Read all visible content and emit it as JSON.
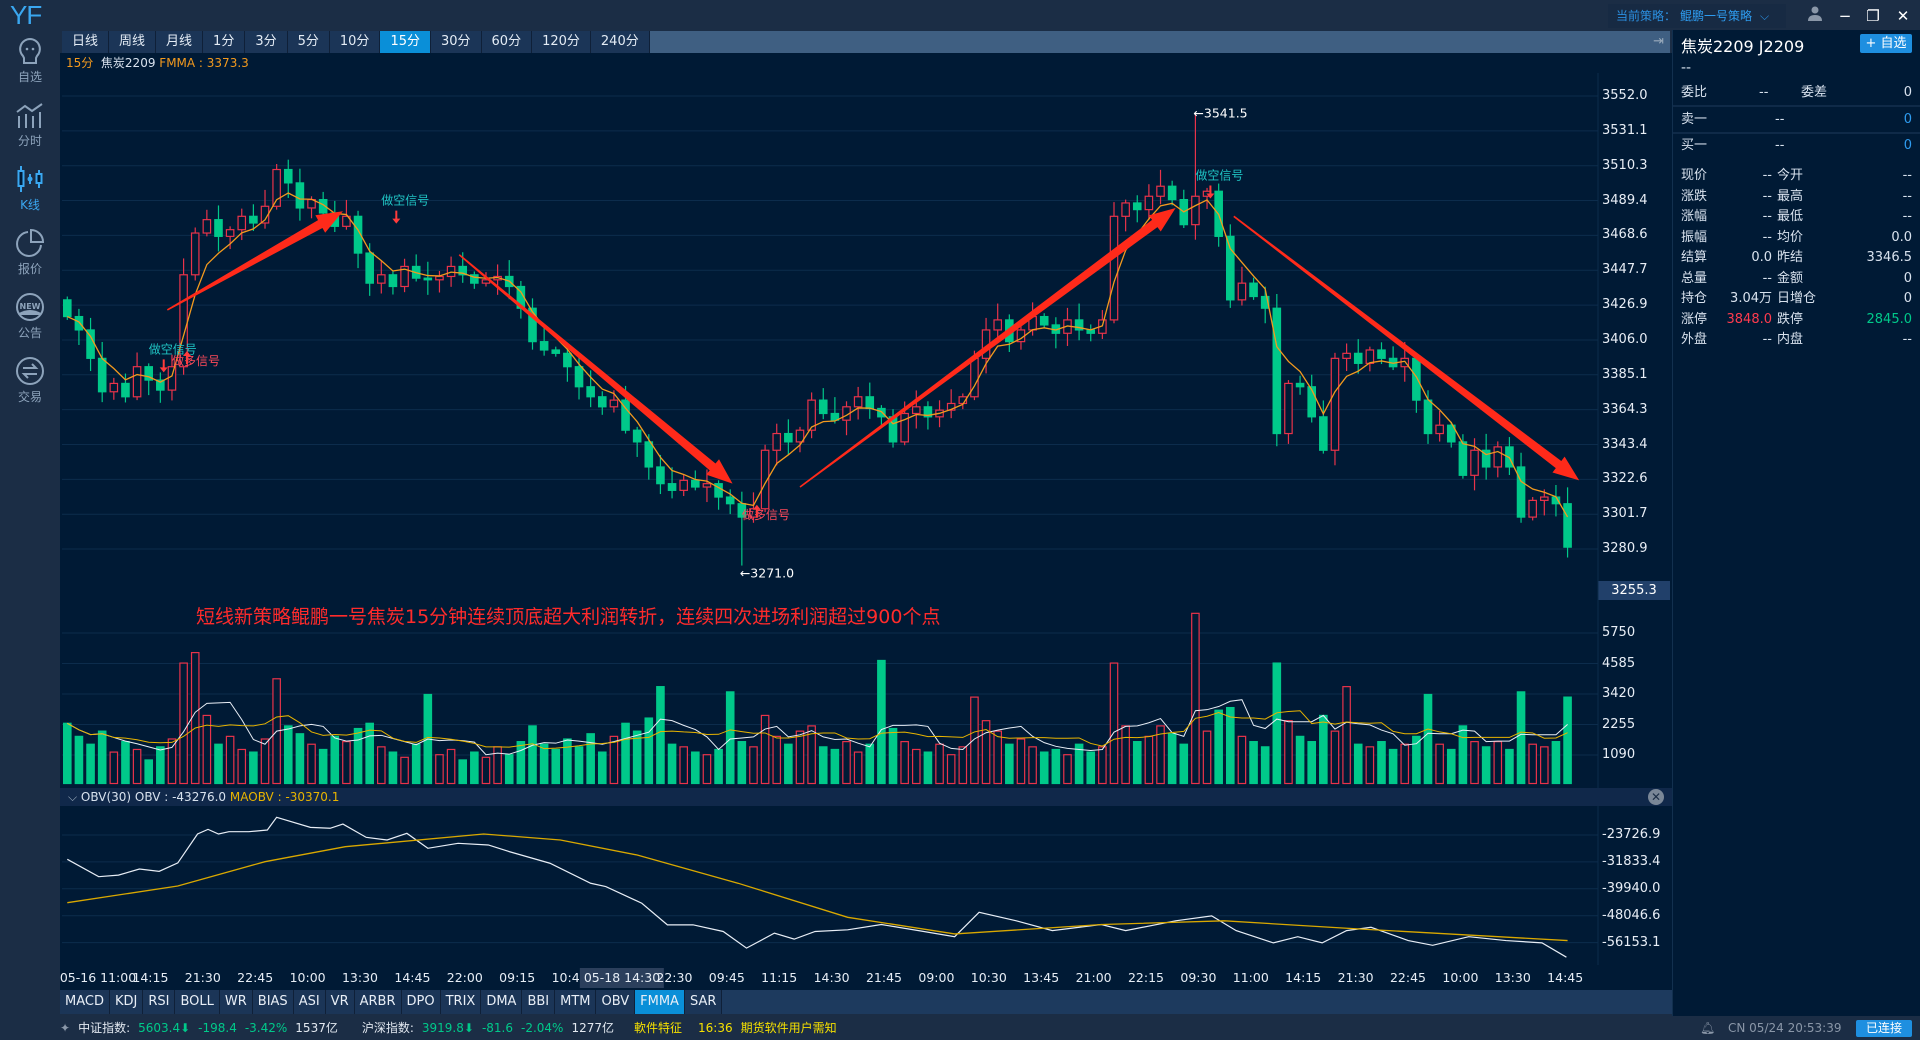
{
  "app": {
    "logo": "YF"
  },
  "sidebar": {
    "items": [
      {
        "label": "自选",
        "icon": "watchlist-icon"
      },
      {
        "label": "分时",
        "icon": "timeshare-icon"
      },
      {
        "label": "K线",
        "icon": "kline-icon",
        "active": true
      },
      {
        "label": "报价",
        "icon": "quote-pie-icon"
      },
      {
        "label": "公告",
        "icon": "new-badge-icon"
      },
      {
        "label": "交易",
        "icon": "trade-exchange-icon"
      }
    ]
  },
  "topbar": {
    "strategy_label": "当前策略：",
    "strategy_value": "鲲鹏一号策略",
    "minimize": "−",
    "restore": "❐",
    "close": "✕"
  },
  "period_tabs": [
    "日线",
    "周线",
    "月线",
    "1分",
    "3分",
    "5分",
    "10分",
    "15分",
    "30分",
    "60分",
    "120分",
    "240分"
  ],
  "active_period": "15分",
  "info": {
    "period": "15分",
    "symbol": "焦炭2209",
    "indicator": "FMMA : 3373.3"
  },
  "overlay_text": "短线新策略鲲鹏一号焦炭15分钟连续顶底超大利润转折，连续四次进场利润超过900个点",
  "colors": {
    "up": "#e8334a",
    "down": "#00c98a",
    "ma": "#f39a1e",
    "arrow": "#ff2a1a",
    "bg": "#001a35",
    "accent": "#0a8fd8"
  },
  "chart_data": {
    "type": "candlestick",
    "price_axis": [
      "3552.0",
      "3531.1",
      "3510.3",
      "3489.4",
      "3468.6",
      "3447.7",
      "3426.9",
      "3406.0",
      "3385.1",
      "3364.3",
      "3343.4",
      "3322.6",
      "3301.7",
      "3280.9"
    ],
    "crosshair_price": "3255.3",
    "closes": [
      3420,
      3412,
      3395,
      3375,
      3380,
      3372,
      3390,
      3382,
      3376,
      3390,
      3445,
      3470,
      3478,
      3468,
      3472,
      3480,
      3476,
      3486,
      3508,
      3500,
      3485,
      3490,
      3482,
      3474,
      3480,
      3458,
      3440,
      3445,
      3438,
      3450,
      3443,
      3442,
      3444,
      3450,
      3445,
      3440,
      3442,
      3444,
      3438,
      3425,
      3405,
      3400,
      3398,
      3390,
      3378,
      3372,
      3366,
      3370,
      3352,
      3345,
      3330,
      3320,
      3316,
      3322,
      3318,
      3320,
      3312,
      3308,
      3300,
      3305,
      3340,
      3350,
      3345,
      3352,
      3370,
      3362,
      3358,
      3366,
      3372,
      3365,
      3360,
      3345,
      3362,
      3366,
      3360,
      3364,
      3368,
      3372,
      3395,
      3412,
      3418,
      3405,
      3412,
      3420,
      3415,
      3410,
      3418,
      3412,
      3410,
      3418,
      3480,
      3488,
      3484,
      3492,
      3498,
      3490,
      3475,
      3492,
      3495,
      3468,
      3430,
      3440,
      3432,
      3425,
      3350,
      3380,
      3378,
      3360,
      3340,
      3395,
      3398,
      3392,
      3400,
      3395,
      3390,
      3395,
      3370,
      3350,
      3355,
      3345,
      3325,
      3340,
      3330,
      3342,
      3330,
      3300,
      3310,
      3312,
      3308,
      3282
    ],
    "first_open": 3430,
    "high_marker": {
      "label": "←3541.5",
      "value": 3541.5,
      "index": 97
    },
    "low_marker": {
      "label": "←3271.0",
      "value": 3271.0,
      "index": 58
    },
    "signals": [
      {
        "text": "做空信号",
        "type": "short",
        "index": 7,
        "price": 3398
      },
      {
        "text": "做多信号",
        "type": "long",
        "index": 9,
        "price": 3391
      },
      {
        "text": "做空信号",
        "type": "short",
        "index": 27,
        "price": 3487
      },
      {
        "text": "做多信号",
        "type": "long",
        "index": 58,
        "price": 3299
      },
      {
        "text": "做空信号",
        "type": "short",
        "index": 97,
        "price": 3502
      }
    ],
    "trend_arrows": [
      {
        "from": [
          8.6,
          3424
        ],
        "to": [
          23.7,
          3483
        ],
        "thick": true
      },
      {
        "from": [
          33.7,
          3457
        ],
        "to": [
          57.2,
          3320
        ],
        "thick": true
      },
      {
        "from": [
          63,
          3318
        ],
        "to": [
          95.3,
          3485
        ],
        "thick": true
      },
      {
        "from": [
          100.3,
          3480
        ],
        "to": [
          130,
          3322
        ],
        "thick": true
      }
    ],
    "volume_axis": [
      "5750",
      "4585",
      "3420",
      "2255",
      "1090"
    ],
    "volumes": [
      2300,
      1800,
      1500,
      2000,
      1200,
      1600,
      1300,
      900,
      1400,
      1700,
      4600,
      5000,
      2600,
      1500,
      1800,
      1300,
      1200,
      1700,
      4000,
      2200,
      1900,
      1500,
      1300,
      1800,
      1600,
      2100,
      2300,
      1400,
      1200,
      1000,
      1500,
      3400,
      1100,
      1300,
      900,
      1200,
      1000,
      1400,
      1100,
      1600,
      2200,
      1500,
      1300,
      1700,
      1400,
      1900,
      1200,
      1800,
      2300,
      2000,
      2500,
      3700,
      1500,
      1400,
      1200,
      1100,
      1300,
      3500,
      1600,
      1400,
      2600,
      1800,
      1500,
      2000,
      2200,
      1400,
      1300,
      1600,
      1200,
      1500,
      4700,
      2100,
      1600,
      1300,
      1200,
      1500,
      1100,
      1400,
      3300,
      2400,
      2000,
      1500,
      1700,
      1400,
      1200,
      1300,
      1100,
      1500,
      1200,
      1400,
      4600,
      2200,
      1600,
      1800,
      2200,
      1900,
      1500,
      6500,
      2000,
      2800,
      2900,
      1800,
      1600,
      1400,
      4600,
      2400,
      1800,
      1600,
      2600,
      2000,
      3700,
      1500,
      1400,
      1600,
      1300,
      1500,
      1800,
      3400,
      1500,
      1300,
      2200,
      1600,
      1400,
      1600,
      1300,
      3500,
      1500,
      1400,
      1600,
      3300
    ],
    "obv_header": {
      "name": "OBV(30)",
      "obv": "OBV : -43276.0",
      "maobv": "MAOBV : -30370.1"
    },
    "obv_axis": [
      "-23726.9",
      "-31833.4",
      "-39940.0",
      "-48046.6",
      "-56153.1"
    ],
    "obv": [
      [
        0,
        -31040
      ],
      [
        2.7,
        -36270
      ],
      [
        4.4,
        -35800
      ],
      [
        6.2,
        -33970
      ],
      [
        7.9,
        -34670
      ],
      [
        9.5,
        -32130
      ],
      [
        11.2,
        -23430
      ],
      [
        12.1,
        -22030
      ],
      [
        13,
        -23430
      ],
      [
        13.9,
        -22730
      ],
      [
        15.6,
        -22730
      ],
      [
        17.2,
        -22230
      ],
      [
        18,
        -18400
      ],
      [
        20.9,
        -21430
      ],
      [
        22.6,
        -21700
      ],
      [
        23.7,
        -20430
      ],
      [
        25.7,
        -24430
      ],
      [
        27.5,
        -25230
      ],
      [
        29.2,
        -23230
      ],
      [
        31,
        -27730
      ],
      [
        33.6,
        -26230
      ],
      [
        36.2,
        -26730
      ],
      [
        38,
        -28730
      ],
      [
        41.5,
        -32230
      ],
      [
        45,
        -38250
      ],
      [
        46.3,
        -39250
      ],
      [
        49.4,
        -44270
      ],
      [
        51.6,
        -50770
      ],
      [
        53.8,
        -50770
      ],
      [
        56.4,
        -52770
      ],
      [
        58.4,
        -57770
      ],
      [
        60.8,
        -53270
      ],
      [
        62.5,
        -55070
      ],
      [
        64.3,
        -52770
      ],
      [
        67.1,
        -52270
      ],
      [
        70,
        -50670
      ],
      [
        73.2,
        -52510
      ],
      [
        76.3,
        -54340
      ],
      [
        78.4,
        -46990
      ],
      [
        81.6,
        -49560
      ],
      [
        84.7,
        -52510
      ],
      [
        88.9,
        -50670
      ],
      [
        91,
        -52510
      ],
      [
        95.3,
        -49560
      ],
      [
        98.4,
        -48080
      ],
      [
        100.5,
        -52510
      ],
      [
        103.7,
        -56200
      ],
      [
        105.8,
        -54340
      ],
      [
        107.9,
        -56200
      ],
      [
        110,
        -52510
      ],
      [
        112.1,
        -51500
      ],
      [
        115.3,
        -55500
      ],
      [
        117.4,
        -56930
      ],
      [
        120.5,
        -54340
      ],
      [
        123.7,
        -55500
      ],
      [
        126.8,
        -56200
      ],
      [
        128.9,
        -60500
      ]
    ],
    "maobv": [
      [
        0,
        -44100
      ],
      [
        9.5,
        -39080
      ],
      [
        17,
        -31760
      ],
      [
        23.9,
        -27250
      ],
      [
        35.8,
        -23430
      ],
      [
        42.4,
        -25230
      ],
      [
        49,
        -29750
      ],
      [
        57.7,
        -38270
      ],
      [
        67.1,
        -48500
      ],
      [
        76.3,
        -53500
      ],
      [
        89,
        -50670
      ],
      [
        99.5,
        -49560
      ],
      [
        110,
        -51800
      ],
      [
        129,
        -55500
      ]
    ],
    "x_labels": [
      "05-16 11:00",
      "14:15",
      "21:30",
      "22:45",
      "10:00",
      "13:30",
      "14:45",
      "22:00",
      "09:15",
      "10:45",
      "05-18 14:30",
      "22:30",
      "09:45",
      "11:15",
      "14:30",
      "21:45",
      "09:00",
      "10:30",
      "13:45",
      "21:00",
      "22:15",
      "09:30",
      "11:00",
      "14:15",
      "21:30",
      "22:45",
      "10:00",
      "13:30",
      "14:45"
    ],
    "x_highlight_index": 10
  },
  "right_panel": {
    "title": "焦炭2209  J2209",
    "add_button": "+ 自选",
    "price": "--",
    "webi": {
      "label": "委比",
      "value": "--",
      "label2": "委差",
      "value2": "0"
    },
    "sell1": {
      "label": "卖一",
      "price": "--",
      "vol": "0"
    },
    "buy1": {
      "label": "买一",
      "price": "--",
      "vol": "0"
    },
    "grid": [
      [
        "现价",
        "--",
        "今开",
        "--"
      ],
      [
        "涨跌",
        "--",
        "最高",
        "--"
      ],
      [
        "涨幅",
        "--",
        "最低",
        "--"
      ],
      [
        "振幅",
        "--",
        "均价",
        "0.0"
      ],
      [
        "结算",
        "0.0",
        "昨结",
        "3346.5"
      ],
      [
        "总量",
        "--",
        "金额",
        "0"
      ],
      [
        "持仓",
        "3.04万",
        "日增仓",
        "0"
      ],
      [
        "涨停",
        "3848.0",
        "跌停",
        "2845.0"
      ],
      [
        "外盘",
        "--",
        "内盘",
        "--"
      ]
    ]
  },
  "indicator_tabs": [
    "MACD",
    "KDJ",
    "RSI",
    "BOLL",
    "WR",
    "BIAS",
    "ASI",
    "VR",
    "ARBR",
    "DPO",
    "TRIX",
    "DMA",
    "BBI",
    "MTM",
    "OBV",
    "FMMA",
    "SAR"
  ],
  "active_indicator": "FMMA",
  "status": {
    "idx1_label": "中证指数:",
    "idx1_val": "5603.4⬇",
    "idx1_chg": "-198.4",
    "idx1_pct": "-3.42%",
    "idx1_amt": "1537亿",
    "idx2_label": "沪深指数:",
    "idx2_val": "3919.8⬇",
    "idx2_chg": "-81.6",
    "idx2_pct": "-2.04%",
    "idx2_amt": "1277亿",
    "news1": "軟件特征",
    "news_time": "16:36",
    "news2": "期货软件用户需知",
    "clock": "CN 05/24 20:53:39",
    "connected": "已连接"
  }
}
